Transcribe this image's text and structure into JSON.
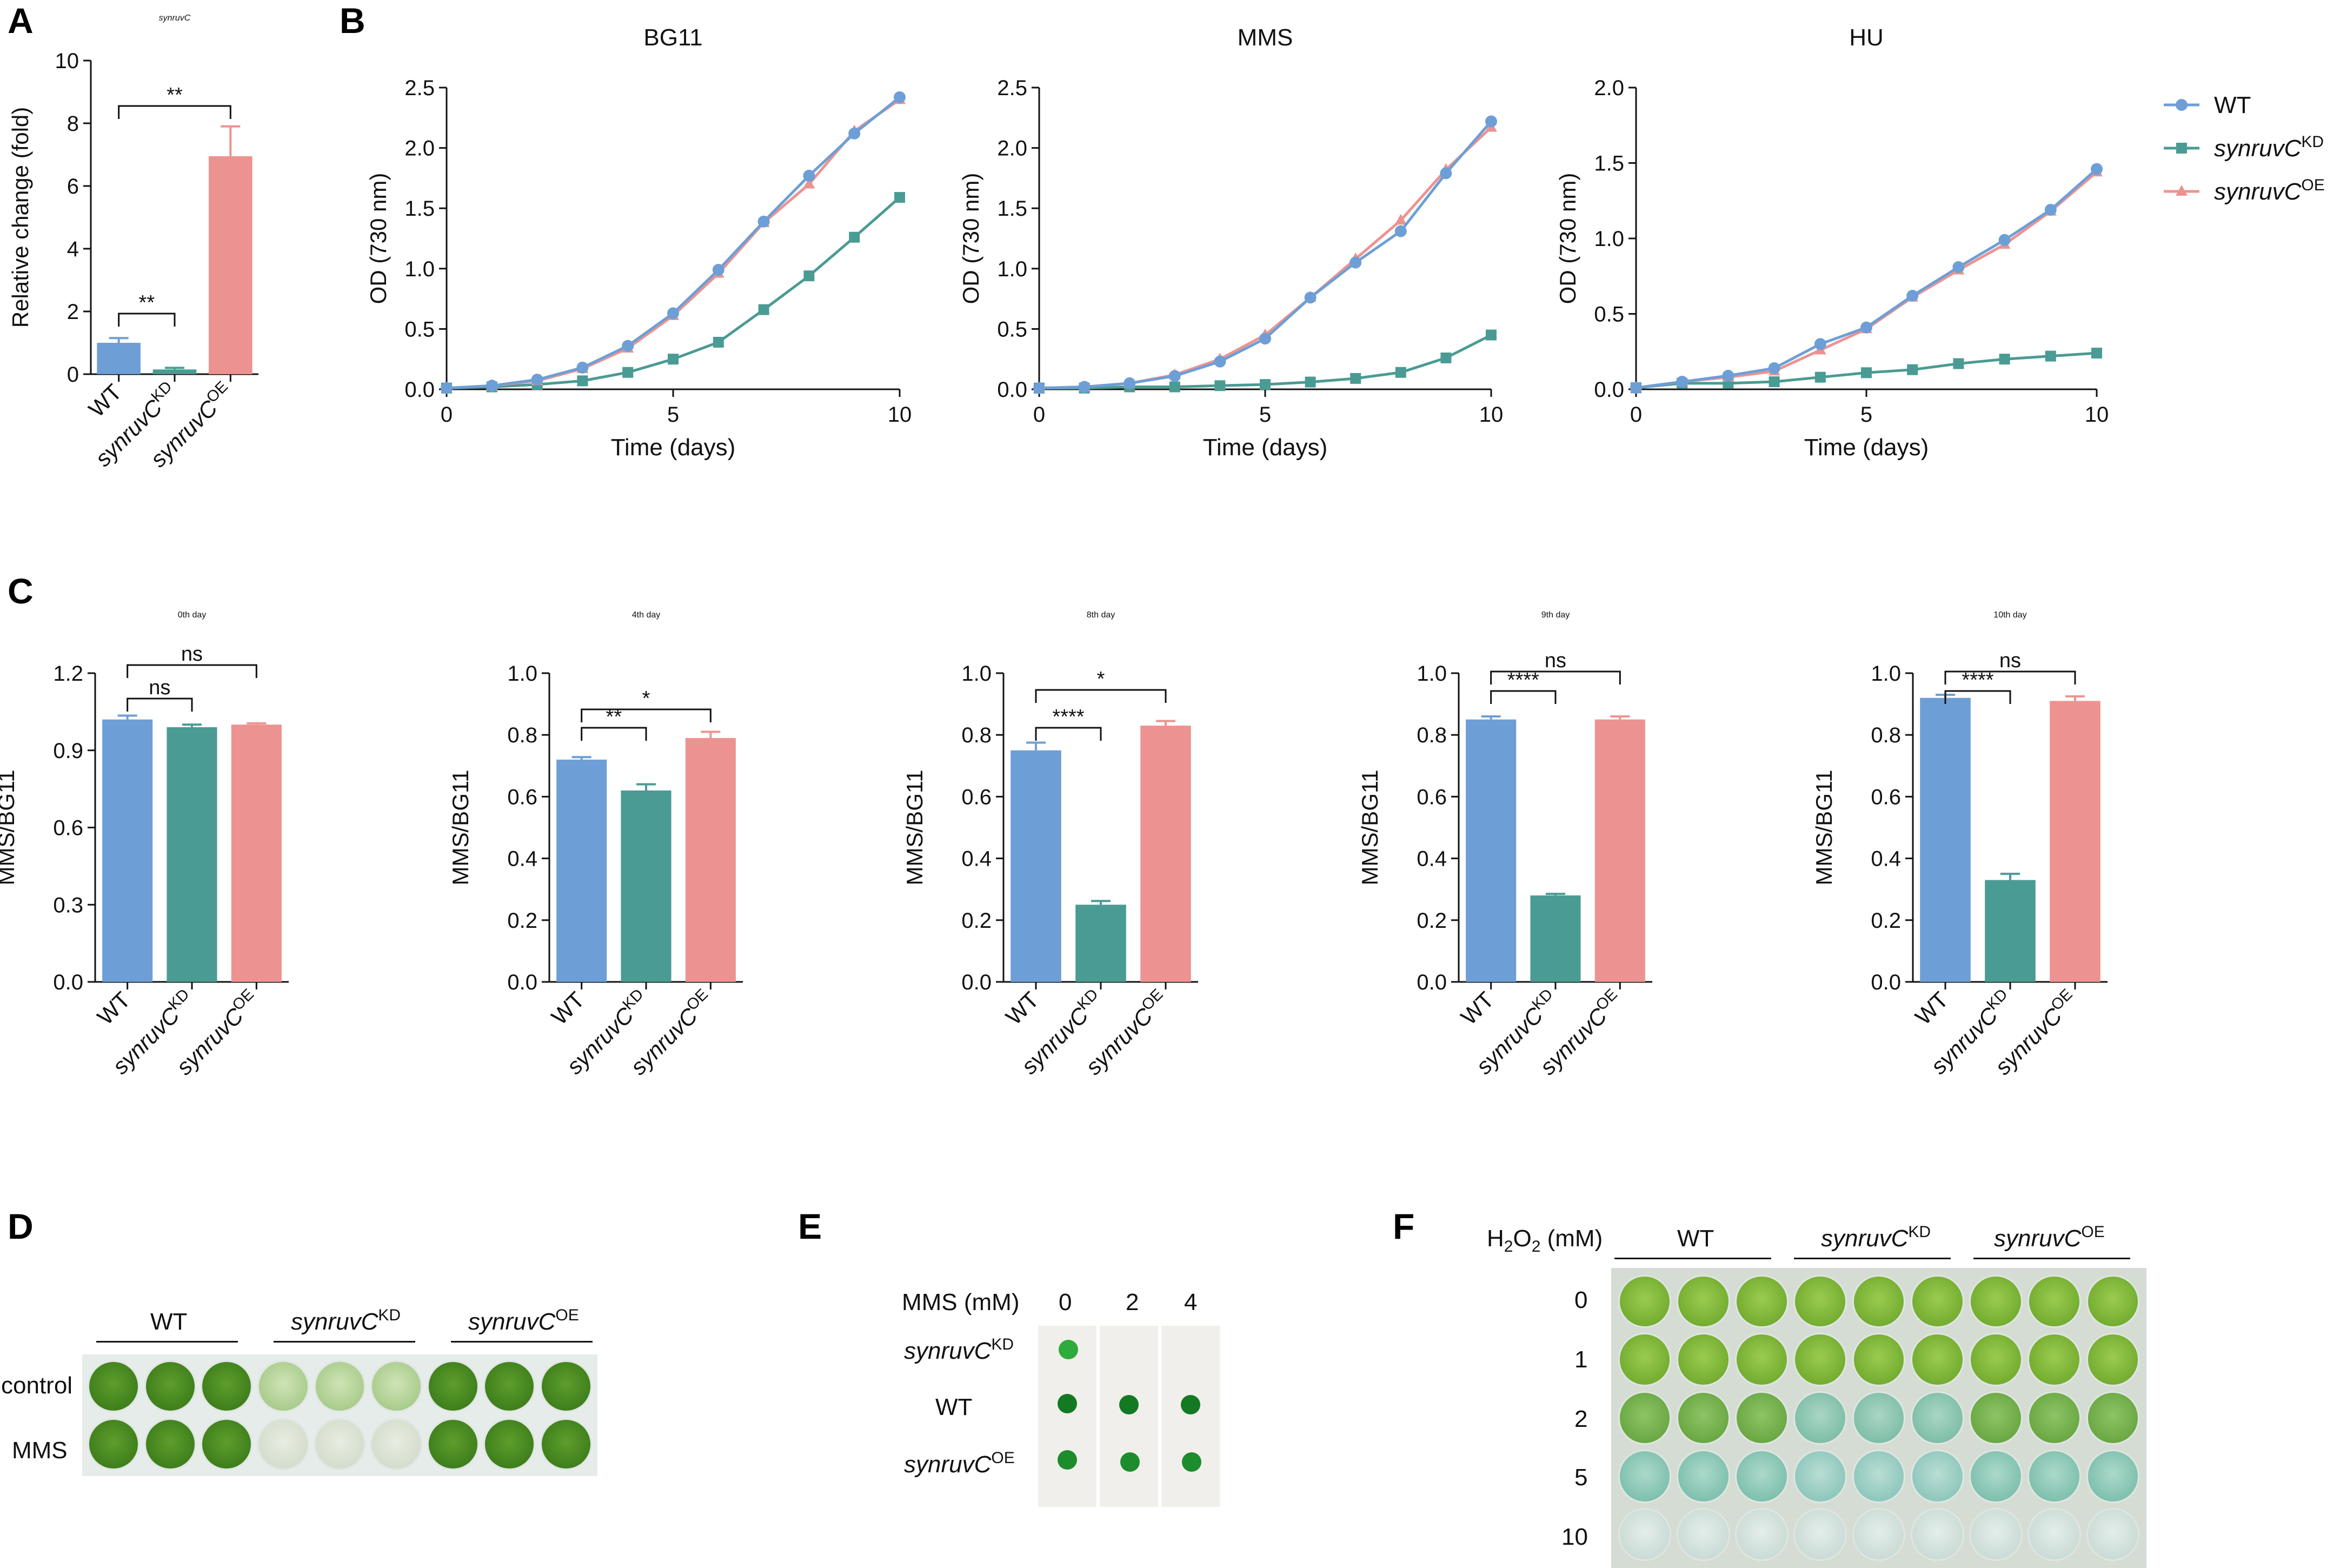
{
  "colors": {
    "wt": "#6d9fd6",
    "kd": "#4a9b93",
    "oe": "#ec9391"
  },
  "strains": {
    "wt": "WT",
    "kd": {
      "base": "synruvC",
      "sup": "KD"
    },
    "oe": {
      "base": "synruvC",
      "sup": "OE"
    }
  },
  "chart_data": [
    {
      "panel": "A",
      "type": "bar",
      "title": "synruvC",
      "ylabel": "Relative change (fold)",
      "ylim": [
        0,
        10
      ],
      "yticks": [
        0,
        2,
        4,
        6,
        8,
        10
      ],
      "categories": [
        "WT",
        "synruvC KD",
        "synruvC OE"
      ],
      "values": [
        1.0,
        0.15,
        6.95
      ],
      "errors": [
        0.15,
        0.05,
        0.95
      ],
      "significance": [
        {
          "a": 0,
          "b": 1,
          "label": "**"
        },
        {
          "a": 0,
          "b": 2,
          "label": "**"
        }
      ]
    },
    {
      "panel": "B",
      "type": "line",
      "title": "BG11",
      "xlabel": "Time (days)",
      "ylabel": "OD (730 nm)",
      "xlim": [
        0,
        10
      ],
      "xticks": [
        0,
        5,
        10
      ],
      "ylim": [
        0,
        2.5
      ],
      "yticks": [
        0.0,
        0.5,
        1.0,
        1.5,
        2.0,
        2.5
      ],
      "x": [
        0,
        1,
        2,
        3,
        4,
        5,
        6,
        7,
        8,
        9,
        10
      ],
      "series": [
        {
          "name": "WT",
          "values": [
            0.01,
            0.03,
            0.08,
            0.18,
            0.36,
            0.63,
            0.99,
            1.39,
            1.77,
            2.12,
            2.42
          ]
        },
        {
          "name": "synruvC KD",
          "values": [
            0.01,
            0.02,
            0.04,
            0.07,
            0.14,
            0.25,
            0.39,
            0.66,
            0.94,
            1.26,
            1.59
          ]
        },
        {
          "name": "synruvC OE",
          "values": [
            0.01,
            0.03,
            0.07,
            0.17,
            0.34,
            0.61,
            0.96,
            1.38,
            1.7,
            2.14,
            2.4
          ]
        }
      ]
    },
    {
      "panel": "B",
      "type": "line",
      "title": "MMS",
      "xlabel": "Time (days)",
      "ylabel": "OD (730 nm)",
      "xlim": [
        0,
        10
      ],
      "xticks": [
        0,
        5,
        10
      ],
      "ylim": [
        0,
        2.5
      ],
      "yticks": [
        0.0,
        0.5,
        1.0,
        1.5,
        2.0,
        2.5
      ],
      "x": [
        0,
        1,
        2,
        3,
        4,
        5,
        6,
        7,
        8,
        9,
        10
      ],
      "series": [
        {
          "name": "WT",
          "values": [
            0.01,
            0.02,
            0.05,
            0.11,
            0.23,
            0.42,
            0.76,
            1.05,
            1.31,
            1.79,
            2.22
          ]
        },
        {
          "name": "synruvC KD",
          "values": [
            0.01,
            0.01,
            0.02,
            0.02,
            0.03,
            0.04,
            0.06,
            0.09,
            0.14,
            0.26,
            0.45
          ]
        },
        {
          "name": "synruvC OE",
          "values": [
            0.01,
            0.02,
            0.05,
            0.12,
            0.25,
            0.45,
            0.76,
            1.08,
            1.4,
            1.82,
            2.17
          ]
        }
      ]
    },
    {
      "panel": "B",
      "type": "line",
      "title": "HU",
      "xlabel": "Time (days)",
      "ylabel": "OD (730 nm)",
      "xlim": [
        0,
        10
      ],
      "xticks": [
        0,
        5,
        10
      ],
      "ylim": [
        0,
        2.0
      ],
      "yticks": [
        0.0,
        0.5,
        1.0,
        1.5,
        2.0
      ],
      "x": [
        0,
        1,
        2,
        3,
        4,
        5,
        6,
        7,
        8,
        9,
        10
      ],
      "series": [
        {
          "name": "WT",
          "values": [
            0.01,
            0.05,
            0.09,
            0.14,
            0.3,
            0.41,
            0.62,
            0.81,
            0.99,
            1.19,
            1.46
          ]
        },
        {
          "name": "synruvC KD",
          "values": [
            0.01,
            0.04,
            0.04,
            0.05,
            0.08,
            0.11,
            0.13,
            0.17,
            0.2,
            0.22,
            0.24
          ]
        },
        {
          "name": "synruvC OE",
          "values": [
            0.01,
            0.05,
            0.08,
            0.12,
            0.26,
            0.4,
            0.61,
            0.79,
            0.96,
            1.18,
            1.44
          ]
        }
      ]
    },
    {
      "panel": "C",
      "type": "bar",
      "title": "0th day",
      "ylabel": "MMS/BG11",
      "ylim": [
        0,
        1.2
      ],
      "yticks": [
        0.0,
        0.3,
        0.6,
        0.9,
        1.2
      ],
      "ytick_labels": [
        "0.0",
        "0.3",
        "0.6",
        "0.9",
        "1.2"
      ],
      "categories": [
        "WT",
        "synruvC KD",
        "synruvC OE"
      ],
      "values": [
        1.02,
        0.99,
        1.0
      ],
      "errors": [
        0.015,
        0.01,
        0.005
      ],
      "significance": [
        {
          "a": 0,
          "b": 1,
          "label": "ns"
        },
        {
          "a": 0,
          "b": 2,
          "label": "ns"
        }
      ]
    },
    {
      "panel": "C",
      "type": "bar",
      "title": "4th day",
      "ylabel": "MMS/BG11",
      "ylim": [
        0,
        1.0
      ],
      "yticks": [
        0.0,
        0.2,
        0.4,
        0.6,
        0.8,
        1.0
      ],
      "ytick_labels": [
        "0.0",
        "0.2",
        "0.4",
        "0.6",
        "0.8",
        "1.0"
      ],
      "categories": [
        "WT",
        "synruvC KD",
        "synruvC OE"
      ],
      "values": [
        0.72,
        0.62,
        0.79
      ],
      "errors": [
        0.008,
        0.02,
        0.02
      ],
      "significance": [
        {
          "a": 0,
          "b": 1,
          "label": "**"
        },
        {
          "a": 0,
          "b": 2,
          "label": "*"
        }
      ]
    },
    {
      "panel": "C",
      "type": "bar",
      "title": "8th day",
      "ylabel": "MMS/BG11",
      "ylim": [
        0,
        1.0
      ],
      "yticks": [
        0.0,
        0.2,
        0.4,
        0.6,
        0.8,
        1.0
      ],
      "ytick_labels": [
        "0.0",
        "0.2",
        "0.4",
        "0.6",
        "0.8",
        "1.0"
      ],
      "categories": [
        "WT",
        "synruvC KD",
        "synruvC OE"
      ],
      "values": [
        0.75,
        0.25,
        0.83
      ],
      "errors": [
        0.025,
        0.012,
        0.015
      ],
      "significance": [
        {
          "a": 0,
          "b": 1,
          "label": "****"
        },
        {
          "a": 0,
          "b": 2,
          "label": "*"
        }
      ]
    },
    {
      "panel": "C",
      "type": "bar",
      "title": "9th day",
      "ylabel": "MMS/BG11",
      "ylim": [
        0,
        1.0
      ],
      "yticks": [
        0.0,
        0.2,
        0.4,
        0.6,
        0.8,
        1.0
      ],
      "ytick_labels": [
        "0.0",
        "0.2",
        "0.4",
        "0.6",
        "0.8",
        "1.0"
      ],
      "categories": [
        "WT",
        "synruvC KD",
        "synruvC OE"
      ],
      "values": [
        0.85,
        0.28,
        0.85
      ],
      "errors": [
        0.01,
        0.005,
        0.01
      ],
      "significance": [
        {
          "a": 0,
          "b": 1,
          "label": "****"
        },
        {
          "a": 0,
          "b": 2,
          "label": "ns"
        }
      ]
    },
    {
      "panel": "C",
      "type": "bar",
      "title": "10th day",
      "ylabel": "MMS/BG11",
      "ylim": [
        0,
        1.0
      ],
      "yticks": [
        0.0,
        0.2,
        0.4,
        0.6,
        0.8,
        1.0
      ],
      "ytick_labels": [
        "0.0",
        "0.2",
        "0.4",
        "0.6",
        "0.8",
        "1.0"
      ],
      "categories": [
        "WT",
        "synruvC KD",
        "synruvC OE"
      ],
      "values": [
        0.92,
        0.33,
        0.91
      ],
      "errors": [
        0.01,
        0.02,
        0.015
      ],
      "significance": [
        {
          "a": 0,
          "b": 1,
          "label": "****"
        },
        {
          "a": 0,
          "b": 2,
          "label": "ns"
        }
      ]
    }
  ],
  "panels": {
    "a": "A",
    "b": "B",
    "c": "C",
    "d": "D",
    "e": "E",
    "f": "F"
  },
  "legend_wt": "WT",
  "panel_d": {
    "rows": [
      "control",
      "MMS"
    ]
  },
  "panel_e": {
    "header": "MMS  (mM)",
    "concs": [
      "0",
      "2",
      "4"
    ]
  },
  "panel_f": {
    "header_base": "H",
    "header_sub": "2",
    "header_mid": "O",
    "header_unit": "(mM)",
    "rows": [
      "0",
      "1",
      "2",
      "5",
      "10"
    ]
  }
}
